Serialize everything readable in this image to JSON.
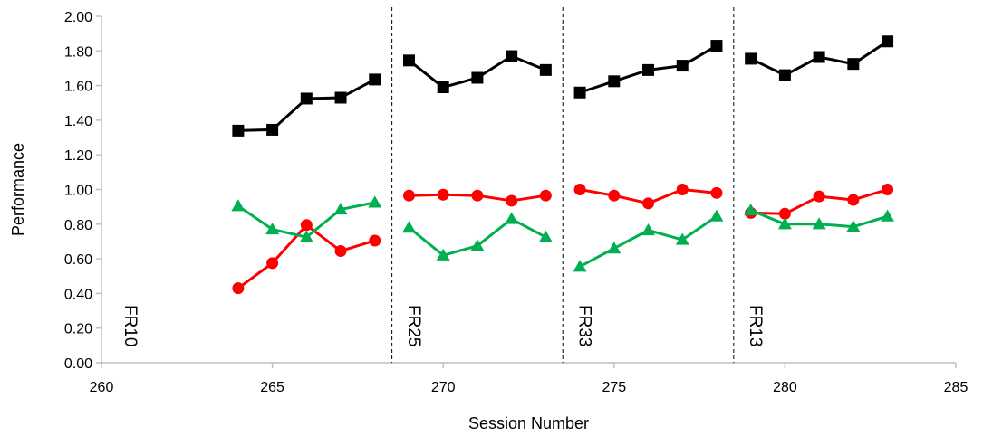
{
  "chart_data": {
    "type": "line",
    "title": "",
    "xlabel": "Session Number",
    "ylabel": "Performance",
    "xlim": [
      260,
      285
    ],
    "ylim": [
      0,
      2.0
    ],
    "x_ticks": [
      "260",
      "265",
      "270",
      "275",
      "280",
      "285"
    ],
    "y_ticks": [
      "0.00",
      "0.20",
      "0.40",
      "0.60",
      "0.80",
      "1.00",
      "1.20",
      "1.40",
      "1.60",
      "1.80",
      "2.00"
    ],
    "grid": false,
    "legend": "none",
    "phase_lines": [
      268.5,
      273.5,
      278.5
    ],
    "phase_labels": [
      {
        "text": "FR10",
        "x": 260.5
      },
      {
        "text": "FR25",
        "x": 268.8
      },
      {
        "text": "FR33",
        "x": 273.8
      },
      {
        "text": "FR13",
        "x": 278.8
      }
    ],
    "series": [
      {
        "marker": "square",
        "color": "#000000",
        "segments": [
          {
            "x": [
              264,
              265,
              266,
              267,
              268
            ],
            "y": [
              1.34,
              1.345,
              1.525,
              1.53,
              1.635
            ]
          },
          {
            "x": [
              269,
              270,
              271,
              272,
              273
            ],
            "y": [
              1.745,
              1.59,
              1.645,
              1.77,
              1.69
            ]
          },
          {
            "x": [
              274,
              275,
              276,
              277,
              278
            ],
            "y": [
              1.56,
              1.625,
              1.69,
              1.715,
              1.83
            ]
          },
          {
            "x": [
              279,
              280,
              281,
              282,
              283
            ],
            "y": [
              1.755,
              1.66,
              1.765,
              1.725,
              1.855
            ]
          }
        ]
      },
      {
        "marker": "circle",
        "color": "#ff0000",
        "segments": [
          {
            "x": [
              264,
              265,
              266,
              267,
              268
            ],
            "y": [
              0.43,
              0.575,
              0.795,
              0.645,
              0.705
            ]
          },
          {
            "x": [
              269,
              270,
              271,
              272,
              273
            ],
            "y": [
              0.965,
              0.97,
              0.965,
              0.935,
              0.965
            ]
          },
          {
            "x": [
              274,
              275,
              276,
              277,
              278
            ],
            "y": [
              1.0,
              0.965,
              0.92,
              1.0,
              0.98
            ]
          },
          {
            "x": [
              279,
              280,
              281,
              282,
              283
            ],
            "y": [
              0.865,
              0.86,
              0.96,
              0.94,
              1.0
            ]
          }
        ]
      },
      {
        "marker": "triangle",
        "color": "#00b050",
        "segments": [
          {
            "x": [
              264,
              265,
              266,
              267,
              268
            ],
            "y": [
              0.905,
              0.77,
              0.725,
              0.885,
              0.925
            ]
          },
          {
            "x": [
              269,
              270,
              271,
              272,
              273
            ],
            "y": [
              0.78,
              0.62,
              0.675,
              0.83,
              0.725
            ]
          },
          {
            "x": [
              274,
              275,
              276,
              277,
              278
            ],
            "y": [
              0.555,
              0.66,
              0.765,
              0.71,
              0.845
            ]
          },
          {
            "x": [
              279,
              280,
              281,
              282,
              283
            ],
            "y": [
              0.88,
              0.8,
              0.8,
              0.785,
              0.845
            ]
          }
        ]
      }
    ]
  }
}
